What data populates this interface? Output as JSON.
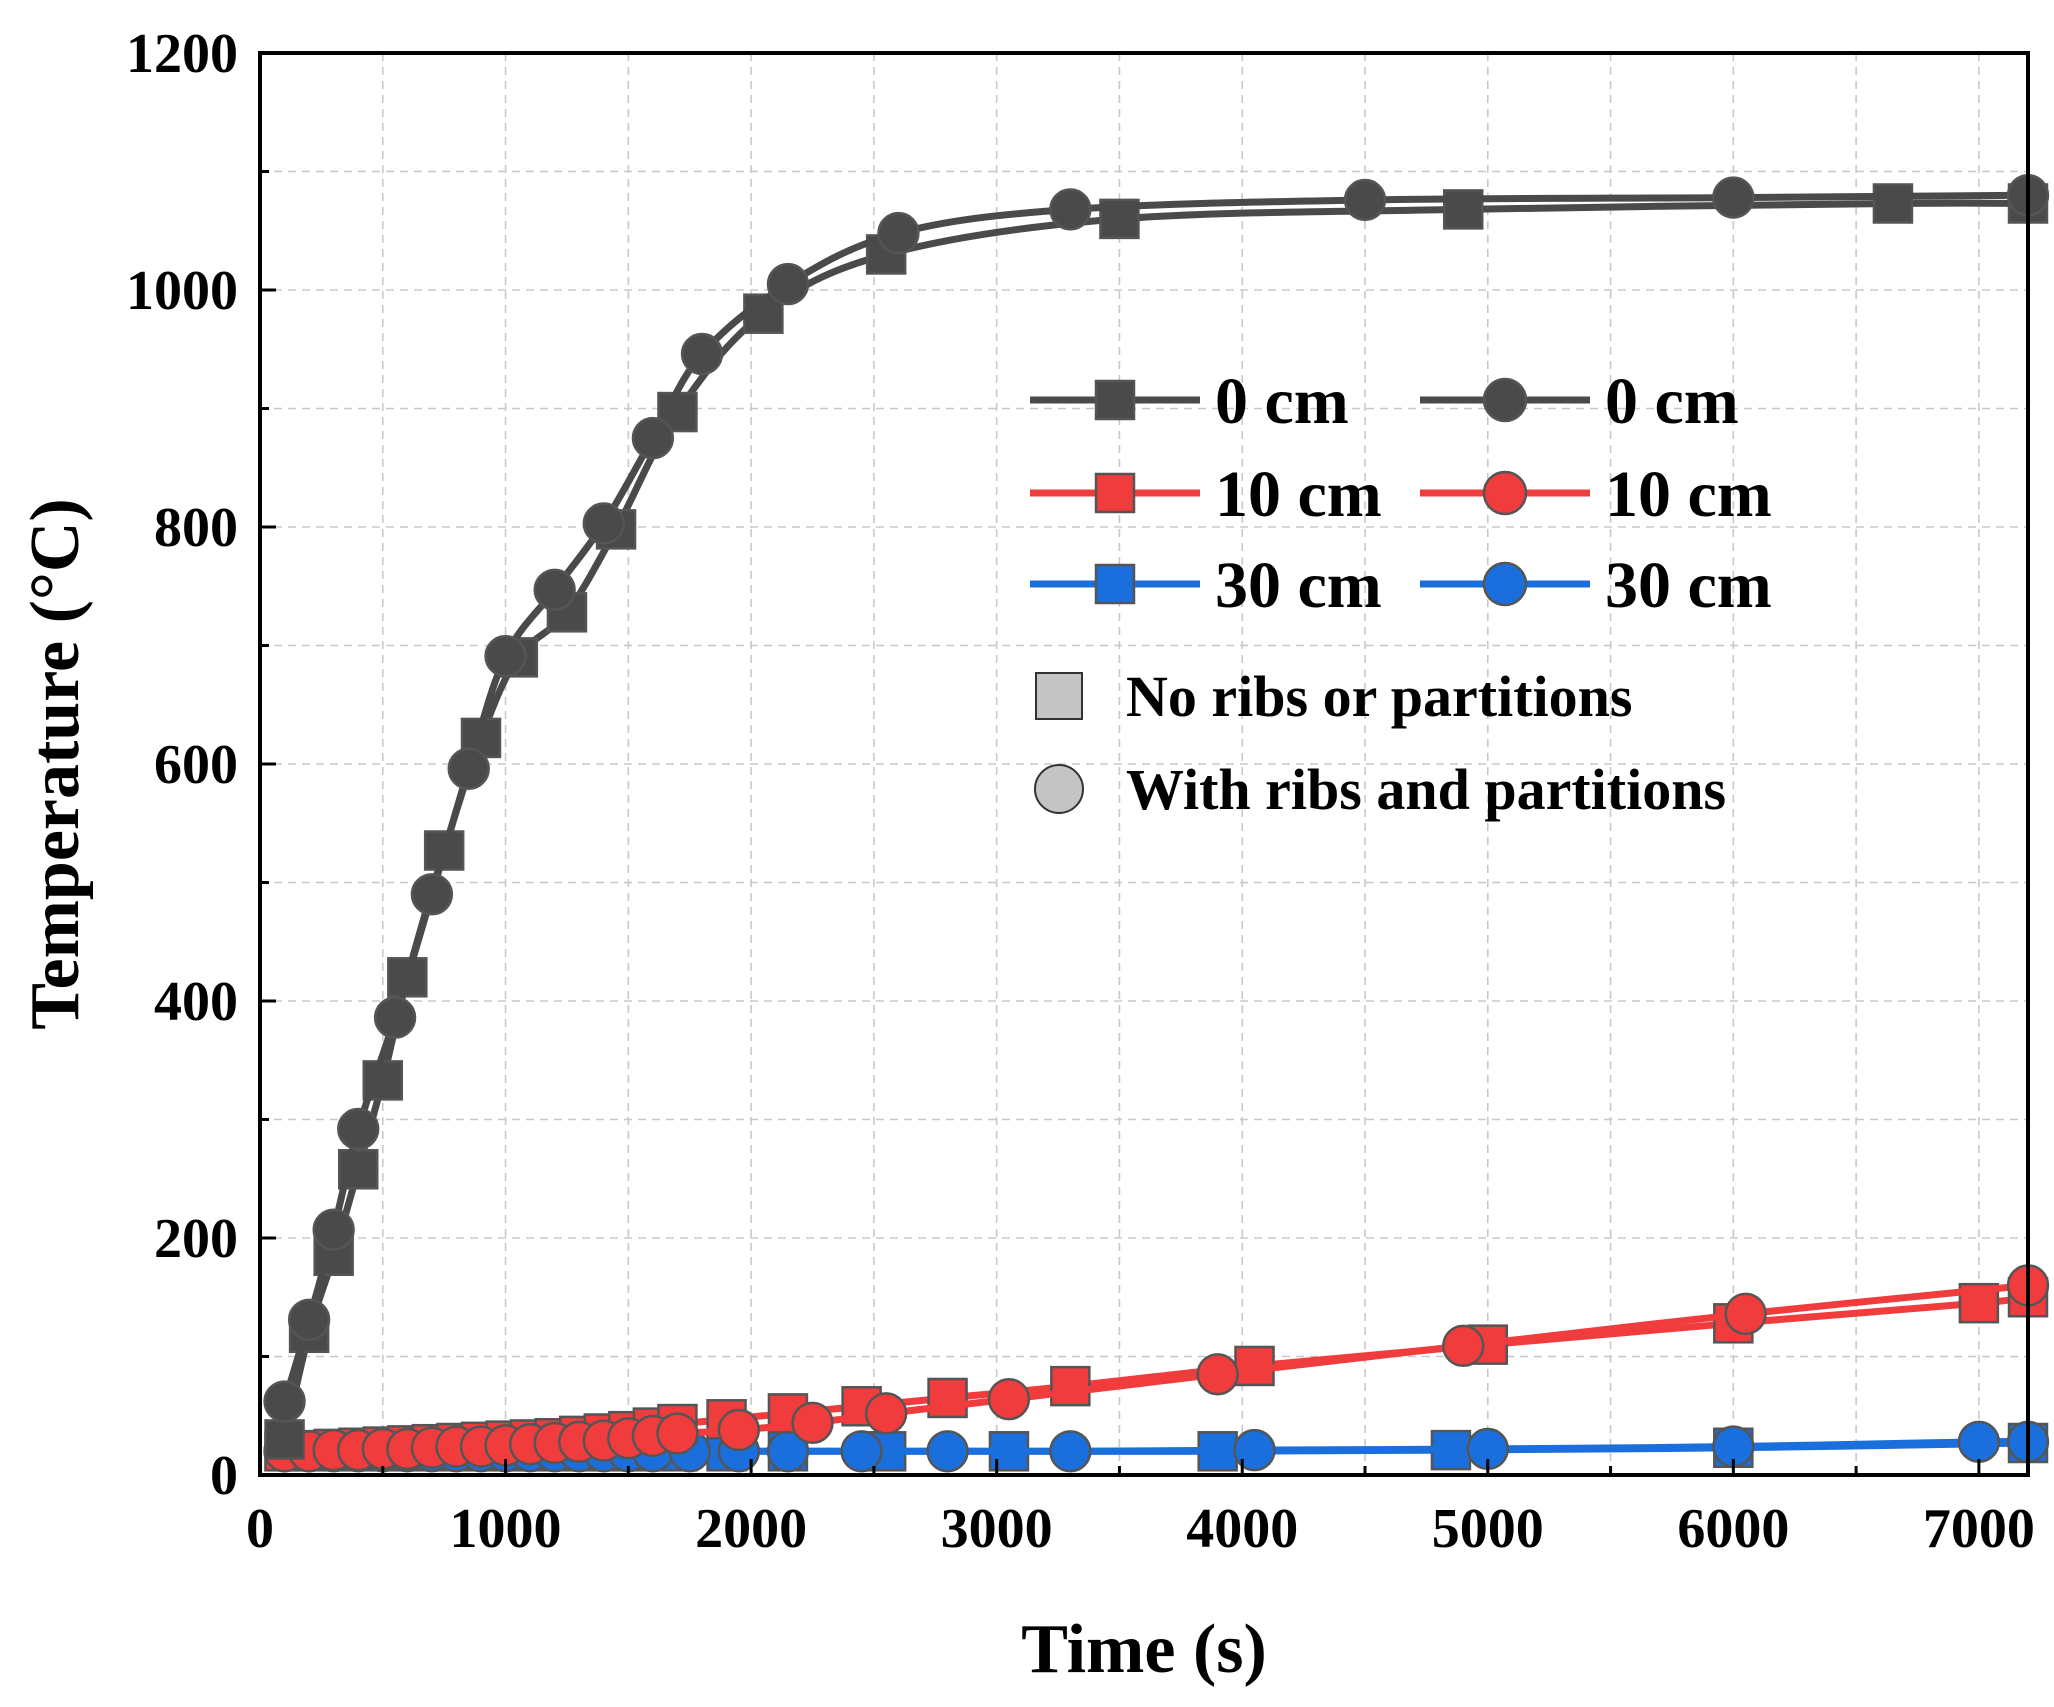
{
  "chart_data": {
    "type": "line",
    "title": "",
    "xlabel": "Time (s)",
    "ylabel": "Temperature (°C)",
    "xlim": [
      0,
      7200
    ],
    "ylim": [
      0,
      1200
    ],
    "xticks": [
      0,
      1000,
      2000,
      3000,
      4000,
      5000,
      6000,
      7000
    ],
    "yticks": [
      0,
      200,
      400,
      600,
      800,
      1000,
      1200
    ],
    "grid": true,
    "colors": {
      "gray": "#4a4a4a",
      "red": "#f03c3c",
      "blue": "#1a6fdc",
      "key_fill": "#c4c4c4"
    },
    "series": [
      {
        "name": "0 cm",
        "group": "No ribs or partitions",
        "marker": "square",
        "color": "#4a4a4a",
        "x": [
          100,
          200,
          300,
          400,
          500,
          600,
          750,
          900,
          1050,
          1250,
          1450,
          1700,
          2050,
          2550,
          3500,
          4900,
          6650,
          7200
        ],
        "y": [
          30,
          120,
          185,
          258,
          333,
          420,
          527,
          622,
          690,
          728,
          798,
          897,
          980,
          1030,
          1060,
          1068,
          1073,
          1073
        ]
      },
      {
        "name": "0 cm",
        "group": "With ribs and partitions",
        "marker": "circle",
        "color": "#4a4a4a",
        "x": [
          100,
          200,
          300,
          400,
          550,
          700,
          850,
          1000,
          1200,
          1400,
          1600,
          1800,
          2150,
          2600,
          3300,
          4500,
          6000,
          7200
        ],
        "y": [
          62,
          131,
          207,
          292,
          386,
          490,
          596,
          691,
          747,
          803,
          875,
          946,
          1005,
          1048,
          1068,
          1076,
          1078,
          1080
        ]
      },
      {
        "name": "10 cm",
        "group": "No ribs or partitions",
        "marker": "square",
        "color": "#f03c3c",
        "x": [
          100,
          200,
          300,
          400,
          500,
          600,
          700,
          800,
          900,
          1000,
          1100,
          1200,
          1300,
          1400,
          1500,
          1600,
          1700,
          1900,
          2150,
          2450,
          2800,
          3300,
          4050,
          5000,
          6000,
          7000,
          7200
        ],
        "y": [
          20,
          21,
          22,
          23,
          24,
          25,
          26,
          27,
          28,
          29,
          30,
          31,
          33,
          35,
          37,
          40,
          43,
          47,
          52,
          58,
          65,
          75,
          92,
          110,
          128,
          145,
          150
        ],
        "y_stated_in_label_order": true
      },
      {
        "name": "10 cm",
        "group": "With ribs and partitions",
        "marker": "circle",
        "color": "#f03c3c",
        "x": [
          100,
          200,
          300,
          400,
          500,
          600,
          700,
          800,
          900,
          1000,
          1100,
          1200,
          1300,
          1400,
          1500,
          1600,
          1700,
          1950,
          2250,
          2550,
          3050,
          3900,
          4900,
          6050,
          7200
        ],
        "y": [
          20,
          20,
          21,
          21,
          22,
          22,
          23,
          24,
          24,
          25,
          26,
          27,
          28,
          29,
          31,
          33,
          35,
          38,
          44,
          52,
          64,
          85,
          109,
          136,
          160
        ]
      },
      {
        "name": "30 cm",
        "group": "No ribs or partitions",
        "marker": "square",
        "color": "#1a6fdc",
        "x": [
          100,
          200,
          300,
          400,
          500,
          600,
          700,
          800,
          900,
          1000,
          1100,
          1200,
          1300,
          1400,
          1500,
          1600,
          1700,
          1900,
          2150,
          2550,
          3050,
          3900,
          4850,
          6000,
          7200
        ],
        "y": [
          20,
          20,
          20,
          20,
          20,
          20,
          20,
          20,
          20,
          20,
          20,
          20,
          20,
          20,
          20,
          20,
          20,
          20,
          20,
          20,
          20,
          20,
          21,
          23,
          27
        ]
      },
      {
        "name": "30 cm",
        "group": "With ribs and partitions",
        "marker": "circle",
        "color": "#1a6fdc",
        "x": [
          100,
          200,
          300,
          400,
          500,
          600,
          700,
          800,
          900,
          1000,
          1100,
          1200,
          1300,
          1400,
          1500,
          1600,
          1750,
          1950,
          2150,
          2450,
          2800,
          3300,
          4050,
          5000,
          6000,
          7000,
          7200
        ],
        "y": [
          20,
          20,
          20,
          20,
          20,
          20,
          20,
          20,
          20,
          20,
          20,
          20,
          20,
          20,
          20,
          20,
          20,
          20,
          20,
          20,
          20,
          20,
          21,
          22,
          24,
          28,
          28
        ]
      }
    ],
    "legend": {
      "position": "center-right",
      "rows": [
        {
          "square_label": "0 cm",
          "circle_label": "0 cm",
          "color": "#4a4a4a"
        },
        {
          "square_label": "10 cm",
          "circle_label": "10 cm",
          "color": "#f03c3c"
        },
        {
          "square_label": "30 cm",
          "circle_label": "30 cm",
          "color": "#1a6fdc"
        }
      ],
      "keys": [
        {
          "marker": "square",
          "label": "No ribs or partitions"
        },
        {
          "marker": "circle",
          "label": "With ribs and partitions"
        }
      ]
    }
  }
}
